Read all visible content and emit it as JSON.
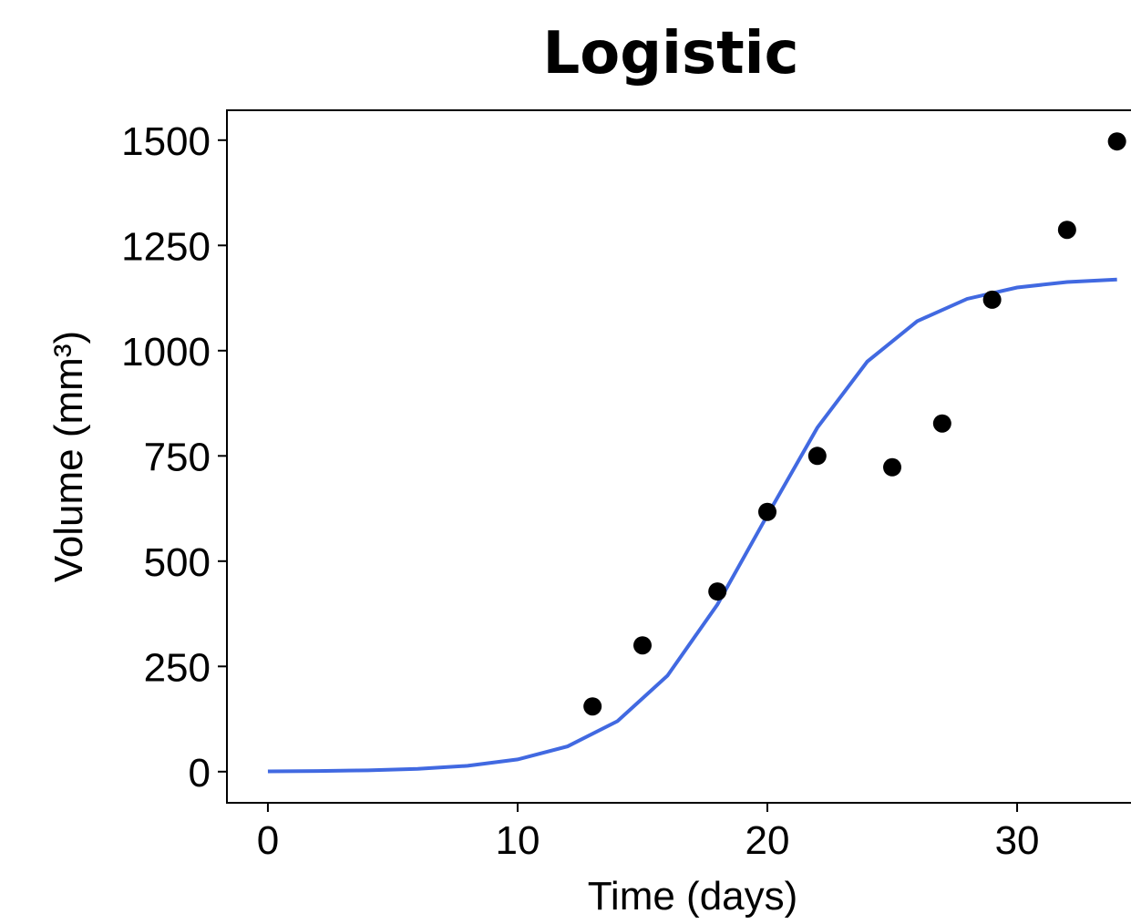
{
  "chart_data": {
    "type": "line_scatter",
    "title": "Logistic",
    "x_label": "Time (days)",
    "y_label": "Volume (mm³)",
    "xlim": [
      -1.64,
      34.56
    ],
    "ylim": [
      -74,
      1571
    ],
    "xticks": [
      0,
      10,
      20,
      30
    ],
    "yticks": [
      0,
      250,
      500,
      750,
      1000,
      1250,
      1500
    ],
    "series": [
      {
        "kind": "line",
        "color": "#4169e1",
        "x": [
          0,
          2,
          4,
          6,
          8,
          10,
          12,
          14,
          16,
          18,
          20,
          22,
          24,
          26,
          28,
          30,
          32,
          34
        ],
        "values": [
          0.7,
          1.5,
          3.1,
          6.6,
          13.9,
          29,
          60,
          120,
          228,
          397,
          609,
          817,
          974,
          1070,
          1123,
          1150,
          1163,
          1169
        ]
      },
      {
        "kind": "scatter",
        "color": "#000000",
        "x": [
          13,
          15,
          18,
          20,
          22,
          25,
          27,
          29,
          32,
          34
        ],
        "values": [
          155,
          300,
          428,
          617,
          750,
          723,
          827,
          1121,
          1287,
          1497
        ]
      }
    ]
  }
}
